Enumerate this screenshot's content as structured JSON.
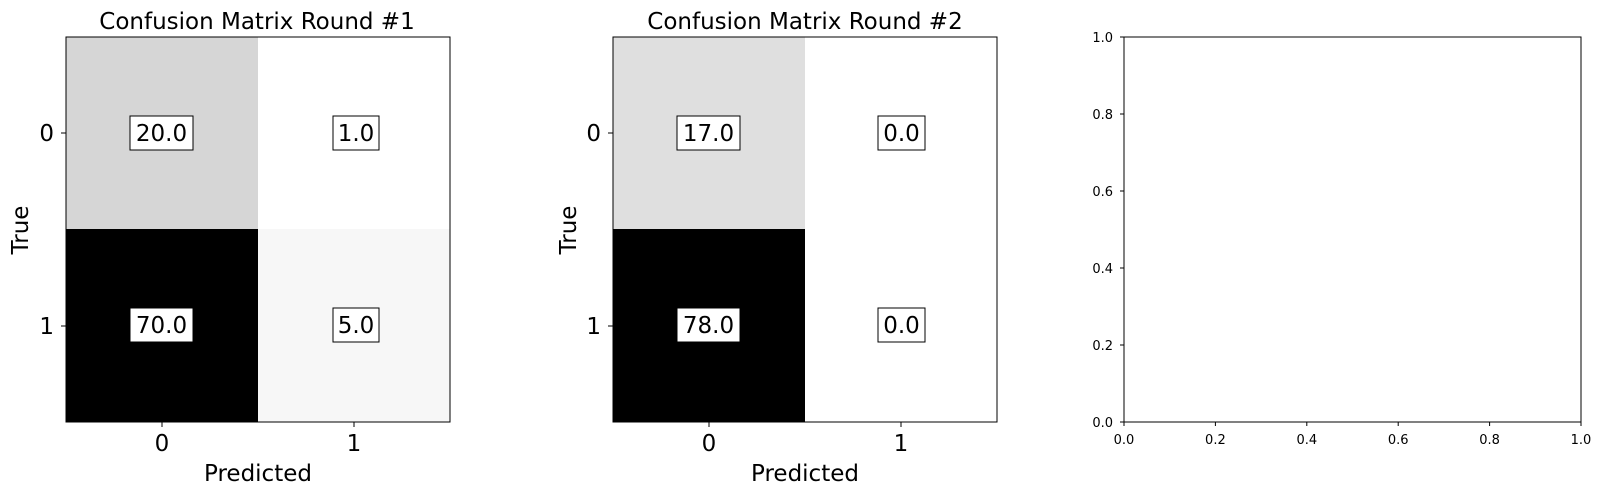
{
  "chart_data": [
    {
      "type": "heatmap",
      "title": "Confusion Matrix Round #1",
      "xlabel": "Predicted",
      "ylabel": "True",
      "x_categories": [
        "0",
        "1"
      ],
      "y_categories": [
        "0",
        "1"
      ],
      "values": [
        [
          20.0,
          1.0
        ],
        [
          70.0,
          5.0
        ]
      ],
      "value_labels": [
        [
          "20.0",
          "1.0"
        ],
        [
          "70.0",
          "5.0"
        ]
      ],
      "colormap": "Greys",
      "vmin": 1.0,
      "vmax": 70.0,
      "grid": false
    },
    {
      "type": "heatmap",
      "title": "Confusion Matrix Round #2",
      "xlabel": "Predicted",
      "ylabel": "True",
      "x_categories": [
        "0",
        "1"
      ],
      "y_categories": [
        "0",
        "1"
      ],
      "values": [
        [
          17.0,
          0.0
        ],
        [
          78.0,
          0.0
        ]
      ],
      "value_labels": [
        [
          "17.0",
          "0.0"
        ],
        [
          "78.0",
          "0.0"
        ]
      ],
      "colormap": "Greys",
      "vmin": 0.0,
      "vmax": 78.0,
      "grid": false
    },
    {
      "type": "scatter",
      "title": "",
      "xlabel": "",
      "ylabel": "",
      "xlim": [
        0.0,
        1.0
      ],
      "ylim": [
        0.0,
        1.0
      ],
      "xticks": [
        "0.0",
        "0.2",
        "0.4",
        "0.6",
        "0.8",
        "1.0"
      ],
      "yticks": [
        "0.0",
        "0.2",
        "0.4",
        "0.6",
        "0.8",
        "1.0"
      ],
      "series": [],
      "grid": false
    }
  ]
}
